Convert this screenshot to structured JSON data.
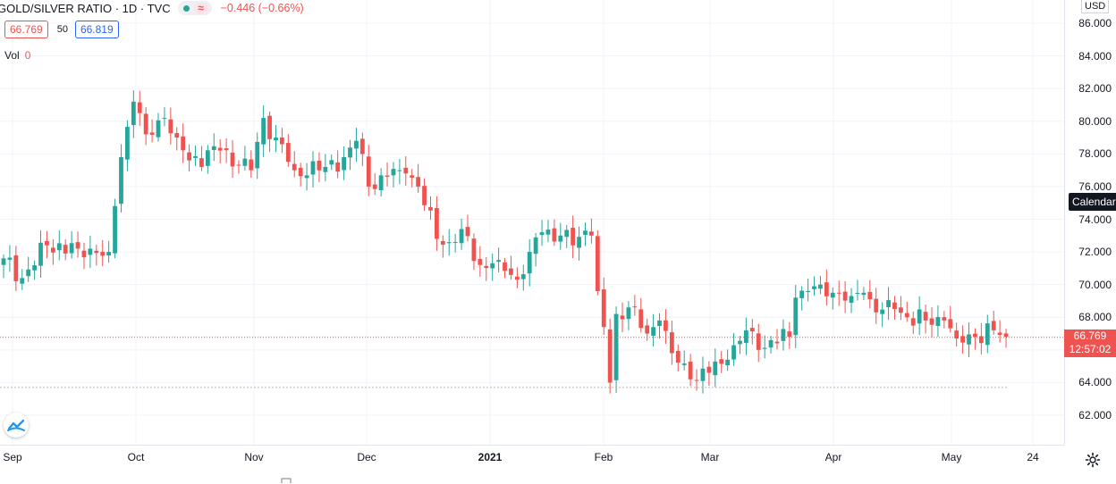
{
  "header": {
    "symbol": "GOLD/SILVER RATIO · 1D · TVC",
    "wave_icon": "≈",
    "change": "−0.446 (−0.66%)"
  },
  "quote": {
    "bid": "66.769",
    "spread": "50",
    "ask": "66.819"
  },
  "volume": {
    "label": "Vol",
    "value": "0"
  },
  "price_axis": {
    "currency": "USD",
    "ticks": [
      "86.000",
      "84.000",
      "82.000",
      "80.000",
      "78.000",
      "76.000",
      "74.000",
      "72.000",
      "70.000",
      "68.000",
      "66.000",
      "64.000",
      "62.000"
    ]
  },
  "calendar_tooltip": "Calendar",
  "last_price": {
    "value": "66.769",
    "countdown": "12:57:02"
  },
  "time_axis": {
    "labels": [
      {
        "text": "Sep",
        "bold": false
      },
      {
        "text": "Oct",
        "bold": false
      },
      {
        "text": "Nov",
        "bold": false
      },
      {
        "text": "Dec",
        "bold": false
      },
      {
        "text": "2021",
        "bold": true
      },
      {
        "text": "Feb",
        "bold": false
      },
      {
        "text": "Mar",
        "bold": false
      },
      {
        "text": "Apr",
        "bold": false
      },
      {
        "text": "May",
        "bold": false
      },
      {
        "text": "24",
        "bold": false
      }
    ]
  },
  "icons": {
    "settings": "gear-icon",
    "logo": "tradingview-logo-icon",
    "status": "market-status-dot-icon"
  },
  "colors": {
    "up": "#26a69a",
    "down": "#ef5350",
    "last_price_line": "#ef5350",
    "accent": "#2962ff"
  },
  "chart_data": {
    "type": "candlestick",
    "title": "GOLD/SILVER RATIO · 1D · TVC",
    "ylim": [
      61.0,
      86.6
    ],
    "x_labels": [
      "Sep",
      "Oct",
      "Nov",
      "Dec",
      "2021",
      "Feb",
      "Mar",
      "Apr",
      "May",
      "24"
    ],
    "last_price": 66.769,
    "horizontal_line": 63.7,
    "close_anchors": [
      {
        "t": 0,
        "v": 71.6
      },
      {
        "t": 3,
        "v": 70.4
      },
      {
        "t": 7,
        "v": 72.4
      },
      {
        "t": 12,
        "v": 72.2
      },
      {
        "t": 17,
        "v": 72.0
      },
      {
        "t": 19,
        "v": 77.8
      },
      {
        "t": 21,
        "v": 81.2
      },
      {
        "t": 23,
        "v": 79.2
      },
      {
        "t": 26,
        "v": 80.2
      },
      {
        "t": 28,
        "v": 79.0
      },
      {
        "t": 30,
        "v": 77.6
      },
      {
        "t": 35,
        "v": 78.2
      },
      {
        "t": 38,
        "v": 77.3
      },
      {
        "t": 40,
        "v": 77.0
      },
      {
        "t": 42,
        "v": 80.2
      },
      {
        "t": 44,
        "v": 79.0
      },
      {
        "t": 47,
        "v": 77.0
      },
      {
        "t": 52,
        "v": 77.2
      },
      {
        "t": 55,
        "v": 77.8
      },
      {
        "t": 57,
        "v": 78.8
      },
      {
        "t": 59,
        "v": 76.0
      },
      {
        "t": 62,
        "v": 76.6
      },
      {
        "t": 65,
        "v": 76.8
      },
      {
        "t": 67,
        "v": 76.0
      },
      {
        "t": 70,
        "v": 72.8
      },
      {
        "t": 72,
        "v": 72.6
      },
      {
        "t": 74,
        "v": 73.4
      },
      {
        "t": 77,
        "v": 71.2
      },
      {
        "t": 80,
        "v": 71.5
      },
      {
        "t": 83,
        "v": 70.3
      },
      {
        "t": 85,
        "v": 72.0
      },
      {
        "t": 87,
        "v": 73.2
      },
      {
        "t": 90,
        "v": 73.0
      },
      {
        "t": 92,
        "v": 72.4
      },
      {
        "t": 94,
        "v": 73.3
      },
      {
        "t": 95,
        "v": 73.0
      },
      {
        "t": 96,
        "v": 69.6
      },
      {
        "t": 97,
        "v": 67.4
      },
      {
        "t": 98,
        "v": 64.0
      },
      {
        "t": 99,
        "v": 68.2
      },
      {
        "t": 101,
        "v": 68.6
      },
      {
        "t": 104,
        "v": 67.0
      },
      {
        "t": 106,
        "v": 67.8
      },
      {
        "t": 108,
        "v": 65.8
      },
      {
        "t": 111,
        "v": 64.2
      },
      {
        "t": 114,
        "v": 64.6
      },
      {
        "t": 117,
        "v": 65.4
      },
      {
        "t": 120,
        "v": 67.2
      },
      {
        "t": 122,
        "v": 66.0
      },
      {
        "t": 124,
        "v": 66.6
      },
      {
        "t": 127,
        "v": 66.8
      },
      {
        "t": 128,
        "v": 69.2
      },
      {
        "t": 130,
        "v": 69.6
      },
      {
        "t": 132,
        "v": 70.0
      },
      {
        "t": 134,
        "v": 69.5
      },
      {
        "t": 137,
        "v": 69.3
      },
      {
        "t": 139,
        "v": 69.5
      },
      {
        "t": 141,
        "v": 68.3
      },
      {
        "t": 144,
        "v": 68.5
      },
      {
        "t": 146,
        "v": 68.0
      },
      {
        "t": 149,
        "v": 67.8
      },
      {
        "t": 152,
        "v": 67.8
      },
      {
        "t": 154,
        "v": 66.7
      },
      {
        "t": 157,
        "v": 66.8
      },
      {
        "t": 160,
        "v": 67.2
      },
      {
        "t": 162,
        "v": 66.8
      }
    ]
  }
}
